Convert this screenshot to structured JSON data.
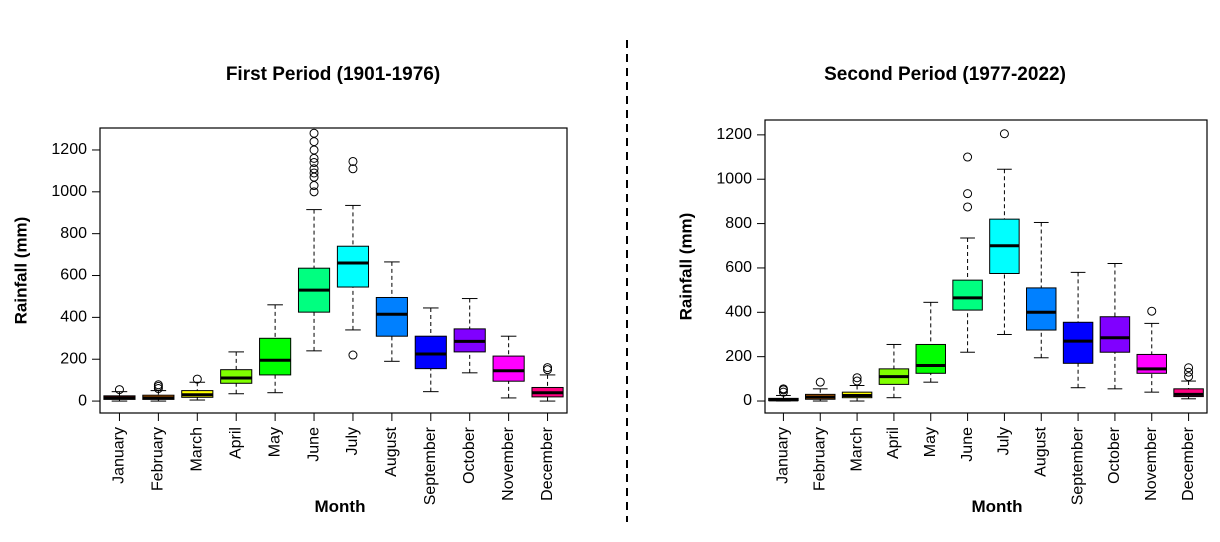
{
  "chart_data": [
    {
      "type": "box",
      "title": "First Period (1901-1976)",
      "x_label": "Month",
      "y_label": "Rainfall (mm)",
      "categories": [
        "January",
        "February",
        "March",
        "April",
        "May",
        "June",
        "July",
        "August",
        "September",
        "October",
        "November",
        "December"
      ],
      "colors": [
        "#FF0000",
        "#FF8000",
        "#FFFF00",
        "#80FF00",
        "#00FF00",
        "#00FF80",
        "#00FFFF",
        "#0080FF",
        "#0000FF",
        "#8000FF",
        "#FF00FF",
        "#FF0080"
      ],
      "boxes": [
        {
          "min": 0,
          "q1": 8,
          "median": 15,
          "q3": 25,
          "max": 45,
          "outliers": [
            55
          ]
        },
        {
          "min": 0,
          "q1": 8,
          "median": 15,
          "q3": 28,
          "max": 50,
          "outliers": [
            60,
            70,
            78
          ]
        },
        {
          "min": 5,
          "q1": 18,
          "median": 30,
          "q3": 50,
          "max": 90,
          "outliers": [
            105
          ]
        },
        {
          "min": 35,
          "q1": 85,
          "median": 110,
          "q3": 150,
          "max": 235,
          "outliers": []
        },
        {
          "min": 40,
          "q1": 125,
          "median": 195,
          "q3": 300,
          "max": 460,
          "outliers": []
        },
        {
          "min": 240,
          "q1": 425,
          "median": 530,
          "q3": 635,
          "max": 915,
          "outliers": [
            1000,
            1030,
            1070,
            1090,
            1110,
            1140,
            1160,
            1200,
            1240,
            1280
          ]
        },
        {
          "min": 340,
          "q1": 545,
          "median": 660,
          "q3": 740,
          "max": 935,
          "outliers": [
            220,
            1110,
            1145
          ]
        },
        {
          "min": 190,
          "q1": 310,
          "median": 415,
          "q3": 495,
          "max": 665,
          "outliers": []
        },
        {
          "min": 45,
          "q1": 155,
          "median": 225,
          "q3": 310,
          "max": 445,
          "outliers": []
        },
        {
          "min": 135,
          "q1": 235,
          "median": 285,
          "q3": 345,
          "max": 490,
          "outliers": []
        },
        {
          "min": 15,
          "q1": 95,
          "median": 145,
          "q3": 215,
          "max": 310,
          "outliers": []
        },
        {
          "min": 0,
          "q1": 20,
          "median": 40,
          "q3": 65,
          "max": 125,
          "outliers": [
            150,
            160
          ]
        }
      ],
      "ylim": [
        -57,
        1305
      ],
      "yticks": [
        0,
        200,
        400,
        600,
        800,
        1000,
        1200
      ]
    },
    {
      "type": "box",
      "title": "Second Period (1977-2022)",
      "x_label": "Month",
      "y_label": "Rainfall (mm)",
      "categories": [
        "January",
        "February",
        "March",
        "April",
        "May",
        "June",
        "July",
        "August",
        "September",
        "October",
        "November",
        "December"
      ],
      "colors": [
        "#FF0000",
        "#FF8000",
        "#FFFF00",
        "#80FF00",
        "#00FF00",
        "#00FF80",
        "#00FFFF",
        "#0080FF",
        "#0000FF",
        "#8000FF",
        "#FF00FF",
        "#FF0080"
      ],
      "boxes": [
        {
          "min": 0,
          "q1": 2,
          "median": 5,
          "q3": 12,
          "max": 25,
          "outliers": [
            40,
            50,
            55
          ]
        },
        {
          "min": 0,
          "q1": 8,
          "median": 18,
          "q3": 30,
          "max": 55,
          "outliers": [
            85
          ]
        },
        {
          "min": 0,
          "q1": 15,
          "median": 25,
          "q3": 40,
          "max": 70,
          "outliers": [
            90,
            105
          ]
        },
        {
          "min": 15,
          "q1": 75,
          "median": 110,
          "q3": 145,
          "max": 255,
          "outliers": []
        },
        {
          "min": 85,
          "q1": 125,
          "median": 160,
          "q3": 255,
          "max": 445,
          "outliers": []
        },
        {
          "min": 220,
          "q1": 410,
          "median": 465,
          "q3": 545,
          "max": 735,
          "outliers": [
            875,
            935,
            1100
          ]
        },
        {
          "min": 300,
          "q1": 575,
          "median": 700,
          "q3": 820,
          "max": 1045,
          "outliers": [
            1205
          ]
        },
        {
          "min": 195,
          "q1": 320,
          "median": 400,
          "q3": 510,
          "max": 805,
          "outliers": []
        },
        {
          "min": 60,
          "q1": 170,
          "median": 270,
          "q3": 355,
          "max": 580,
          "outliers": []
        },
        {
          "min": 55,
          "q1": 220,
          "median": 285,
          "q3": 380,
          "max": 620,
          "outliers": []
        },
        {
          "min": 40,
          "q1": 125,
          "median": 145,
          "q3": 210,
          "max": 350,
          "outliers": [
            405
          ]
        },
        {
          "min": 10,
          "q1": 20,
          "median": 30,
          "q3": 55,
          "max": 90,
          "outliers": [
            110,
            130,
            150
          ]
        }
      ],
      "ylim": [
        -54,
        1267
      ],
      "yticks": [
        0,
        200,
        400,
        600,
        800,
        1000,
        1200
      ]
    }
  ]
}
